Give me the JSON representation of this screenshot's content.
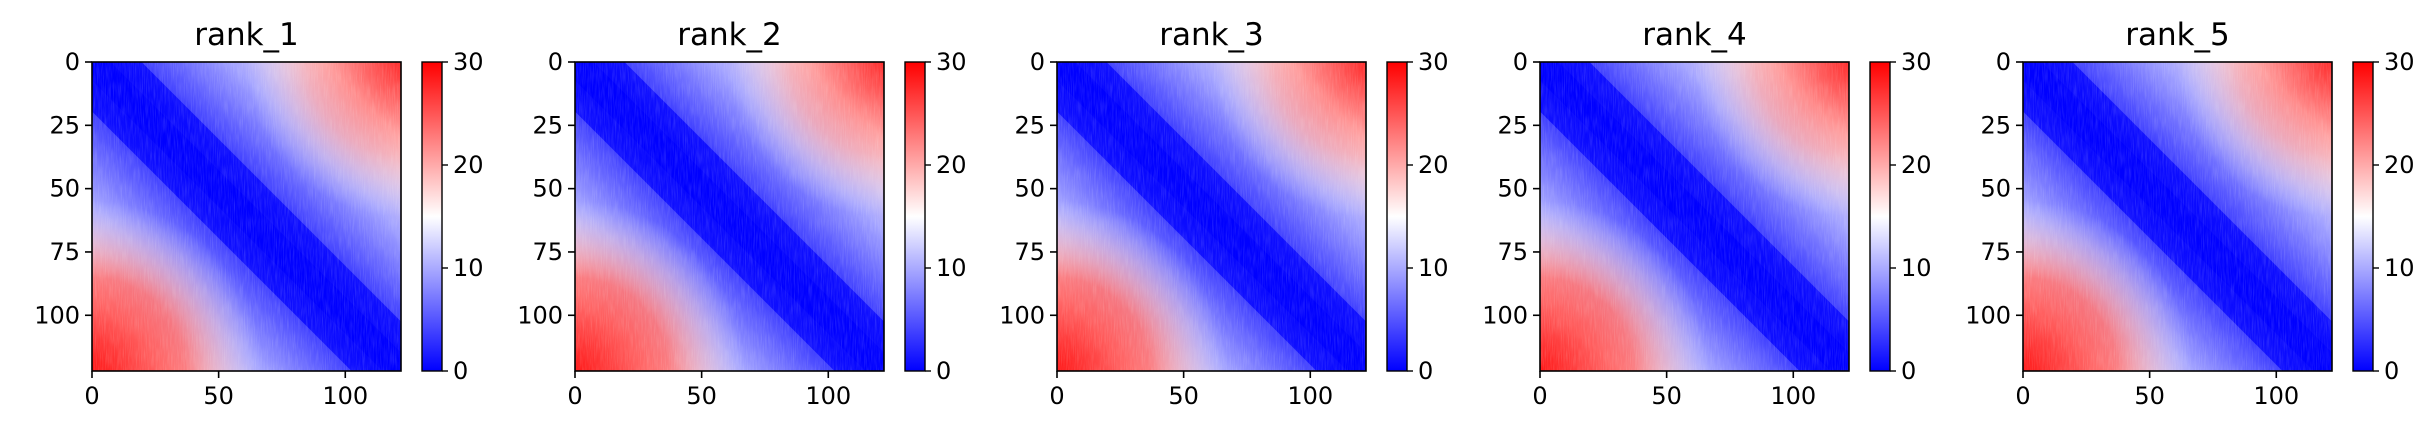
{
  "chart_data": [
    {
      "type": "heatmap",
      "title": "rank_1",
      "xlim": [
        0,
        122
      ],
      "ylim": [
        122,
        0
      ],
      "xticks": [
        "0",
        "50",
        "100"
      ],
      "yticks": [
        "0",
        "25",
        "50",
        "75",
        "100"
      ],
      "colorbar": {
        "ticks": [
          "0",
          "10",
          "20",
          "30"
        ],
        "vmin": 0,
        "vmax": 30,
        "cmap": "bwr"
      }
    },
    {
      "type": "heatmap",
      "title": "rank_2",
      "xlim": [
        0,
        122
      ],
      "ylim": [
        122,
        0
      ],
      "xticks": [
        "0",
        "50",
        "100"
      ],
      "yticks": [
        "0",
        "25",
        "50",
        "75",
        "100"
      ],
      "colorbar": {
        "ticks": [
          "0",
          "10",
          "20",
          "30"
        ],
        "vmin": 0,
        "vmax": 30,
        "cmap": "bwr"
      }
    },
    {
      "type": "heatmap",
      "title": "rank_3",
      "xlim": [
        0,
        122
      ],
      "ylim": [
        122,
        0
      ],
      "xticks": [
        "0",
        "50",
        "100"
      ],
      "yticks": [
        "0",
        "25",
        "50",
        "75",
        "100"
      ],
      "colorbar": {
        "ticks": [
          "0",
          "10",
          "20",
          "30"
        ],
        "vmin": 0,
        "vmax": 30,
        "cmap": "bwr"
      }
    },
    {
      "type": "heatmap",
      "title": "rank_4",
      "xlim": [
        0,
        122
      ],
      "ylim": [
        122,
        0
      ],
      "xticks": [
        "0",
        "50",
        "100"
      ],
      "yticks": [
        "0",
        "25",
        "50",
        "75",
        "100"
      ],
      "colorbar": {
        "ticks": [
          "0",
          "10",
          "20",
          "30"
        ],
        "vmin": 0,
        "vmax": 30,
        "cmap": "bwr"
      }
    },
    {
      "type": "heatmap",
      "title": "rank_5",
      "xlim": [
        0,
        122
      ],
      "ylim": [
        122,
        0
      ],
      "xticks": [
        "0",
        "50",
        "100"
      ],
      "yticks": [
        "0",
        "25",
        "50",
        "75",
        "100"
      ],
      "colorbar": {
        "ticks": [
          "0",
          "10",
          "20",
          "30"
        ],
        "vmin": 0,
        "vmax": 30,
        "cmap": "bwr"
      }
    }
  ],
  "colors": {
    "low": "#0000ff",
    "mid": "#ffffff",
    "high": "#ff0000",
    "axis": "#000000"
  }
}
